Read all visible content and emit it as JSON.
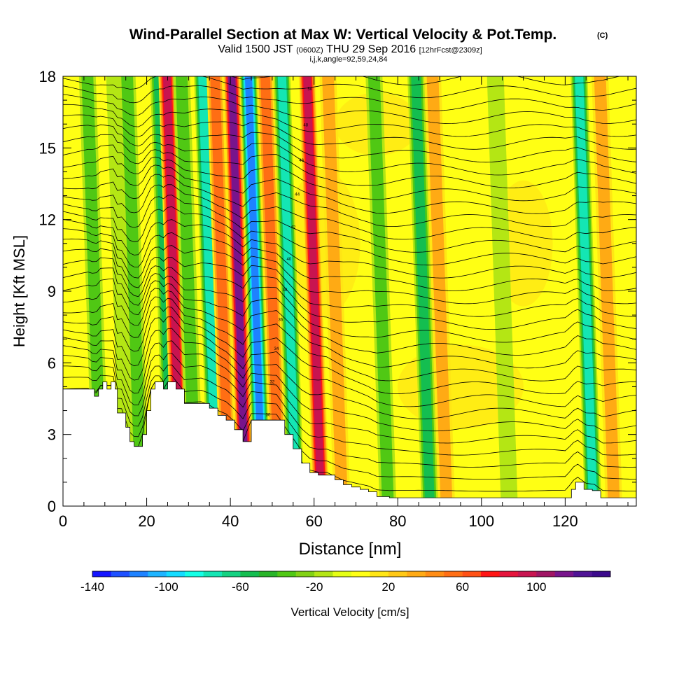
{
  "chart_data": {
    "type": "heatmap",
    "title": "Wind-Parallel Section at Max W: Vertical Velocity & Pot.Temp.",
    "title_mark": "(C)",
    "subtitle": {
      "valid": "Valid 1500 JST",
      "zulu": "(0600Z)",
      "date": "THU 29 Sep 2016",
      "fcst": "[12hrFcst@2309z]"
    },
    "params": "i,j,k,angle=92,59,24,84",
    "xlabel": "Distance [nm]",
    "ylabel": "Height [Kft MSL]",
    "xlim": [
      0,
      137
    ],
    "ylim": [
      0,
      18
    ],
    "xticks": [
      0,
      20,
      40,
      60,
      80,
      100,
      120
    ],
    "yticks": [
      0,
      3,
      6,
      9,
      12,
      15,
      18
    ],
    "colorbar": {
      "label": "Vertical Velocity [cm/s]",
      "tick_labels": [
        -140,
        -100,
        -60,
        -20,
        20,
        60,
        100
      ],
      "bounds": [
        -140,
        140
      ],
      "step": 10,
      "colors": [
        "#1414ff",
        "#1e50ff",
        "#1e82ff",
        "#1eb4ff",
        "#14dcff",
        "#14ffe6",
        "#14e6b4",
        "#14d282",
        "#14be50",
        "#28b428",
        "#50c814",
        "#82d214",
        "#b4e614",
        "#e6ff14",
        "#ffff14",
        "#ffe614",
        "#ffc814",
        "#ffaa14",
        "#ff8c14",
        "#ff6e14",
        "#ff5014",
        "#ff1414",
        "#e6143c",
        "#c81450",
        "#a01464",
        "#78148c",
        "#501496",
        "#3c0a8c"
      ]
    },
    "updrafts": [
      {
        "x": 7.5,
        "w": -30
      },
      {
        "x": 14,
        "w": -25
      },
      {
        "x": 17,
        "w": -40
      },
      {
        "x": 24.5,
        "w": -55
      },
      {
        "x": 26.5,
        "w": 100
      },
      {
        "x": 30,
        "w": -40
      },
      {
        "x": 35,
        "w": -70
      },
      {
        "x": 38,
        "w": 60
      },
      {
        "x": 42,
        "w": 110
      },
      {
        "x": 46,
        "w": -115
      },
      {
        "x": 50,
        "w": 50
      },
      {
        "x": 54,
        "w": -75
      },
      {
        "x": 60,
        "w": 95
      },
      {
        "x": 65,
        "w": 40
      },
      {
        "x": 76,
        "w": -30
      },
      {
        "x": 86,
        "w": -60
      },
      {
        "x": 90,
        "w": 40
      },
      {
        "x": 105,
        "w": -25
      },
      {
        "x": 125,
        "w": -70
      },
      {
        "x": 130,
        "w": 30
      }
    ],
    "terrain": {
      "x": [
        0,
        6.5,
        7.5,
        8.5,
        9.5,
        10.5,
        11.5,
        12.5,
        13,
        14,
        15,
        16,
        17,
        18,
        19,
        20,
        21,
        22,
        23,
        24,
        25,
        26,
        27,
        29,
        31,
        33,
        35,
        37,
        39,
        41,
        43,
        45,
        47,
        49,
        51,
        53,
        55,
        57,
        59,
        61,
        63,
        65,
        67,
        69,
        71,
        73,
        75,
        78,
        80,
        100,
        120,
        121.5,
        122.5,
        123.5,
        124.5,
        125.5,
        126.5,
        127.5,
        128.5,
        129.5,
        130.5,
        137
      ],
      "y": [
        4.9,
        4.9,
        4.6,
        4.9,
        5.2,
        4.9,
        5.2,
        4.9,
        3.9,
        3.9,
        3.3,
        2.7,
        2.5,
        2.5,
        3.0,
        4.0,
        4.9,
        5.2,
        5.2,
        4.9,
        5.2,
        5.2,
        4.9,
        4.3,
        4.3,
        4.3,
        4.1,
        3.8,
        3.6,
        3.2,
        2.7,
        3.6,
        3.6,
        3.6,
        3.6,
        3.0,
        2.4,
        1.8,
        1.4,
        1.3,
        1.3,
        1.1,
        0.9,
        0.8,
        0.7,
        0.6,
        0.4,
        0.35,
        0.35,
        0.35,
        0.35,
        0.7,
        1.0,
        1.0,
        0.7,
        0.7,
        0.65,
        0.65,
        0.35,
        0.35,
        0.35,
        0.35
      ]
    },
    "isentropes": {
      "count": 34,
      "label_values": [
        30,
        32,
        34,
        36,
        38,
        40,
        42,
        44,
        46,
        48,
        50,
        52,
        54,
        56
      ]
    }
  }
}
